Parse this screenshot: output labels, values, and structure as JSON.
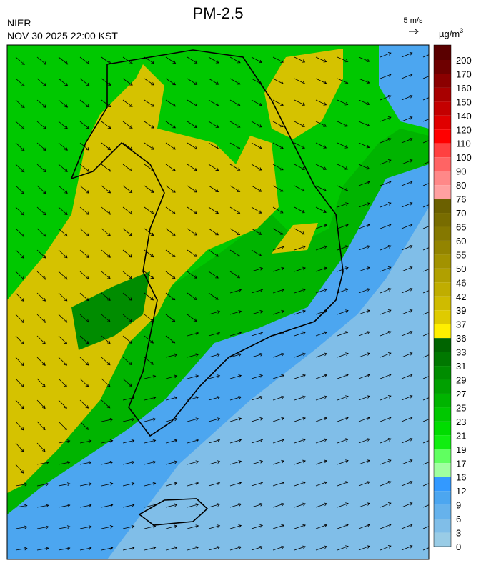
{
  "header": {
    "title": "PM-2.5",
    "agency": "NIER",
    "timestamp": "NOV 30 2025 22:00 KST"
  },
  "wind_legend": {
    "label": "5 m/s"
  },
  "colorbar": {
    "unit": "µg/m",
    "unit_superscript": "3",
    "labels": [
      "200",
      "170",
      "160",
      "150",
      "140",
      "120",
      "110",
      "100",
      "90",
      "80",
      "76",
      "70",
      "65",
      "60",
      "55",
      "50",
      "46",
      "42",
      "39",
      "37",
      "36",
      "33",
      "31",
      "29",
      "27",
      "25",
      "23",
      "21",
      "19",
      "17",
      "16",
      "12",
      "9",
      "6",
      "3",
      "0"
    ],
    "colors": [
      "#5a0000",
      "#6e0000",
      "#8b0000",
      "#a80000",
      "#c40000",
      "#e00000",
      "#ff0000",
      "#ff4040",
      "#ff6464",
      "#ff8888",
      "#ffa0a0",
      "#6b6000",
      "#786c00",
      "#857800",
      "#938400",
      "#a29200",
      "#b1a000",
      "#c0ad00",
      "#cfbb00",
      "#dfcb00",
      "#ffef00",
      "#006400",
      "#007800",
      "#008c00",
      "#00a000",
      "#00b400",
      "#00c800",
      "#00dc00",
      "#10ee10",
      "#60ff60",
      "#a0ffa0",
      "#3399ff",
      "#4ca6f0",
      "#66b2ec",
      "#80bee8",
      "#99cce6"
    ]
  }
}
